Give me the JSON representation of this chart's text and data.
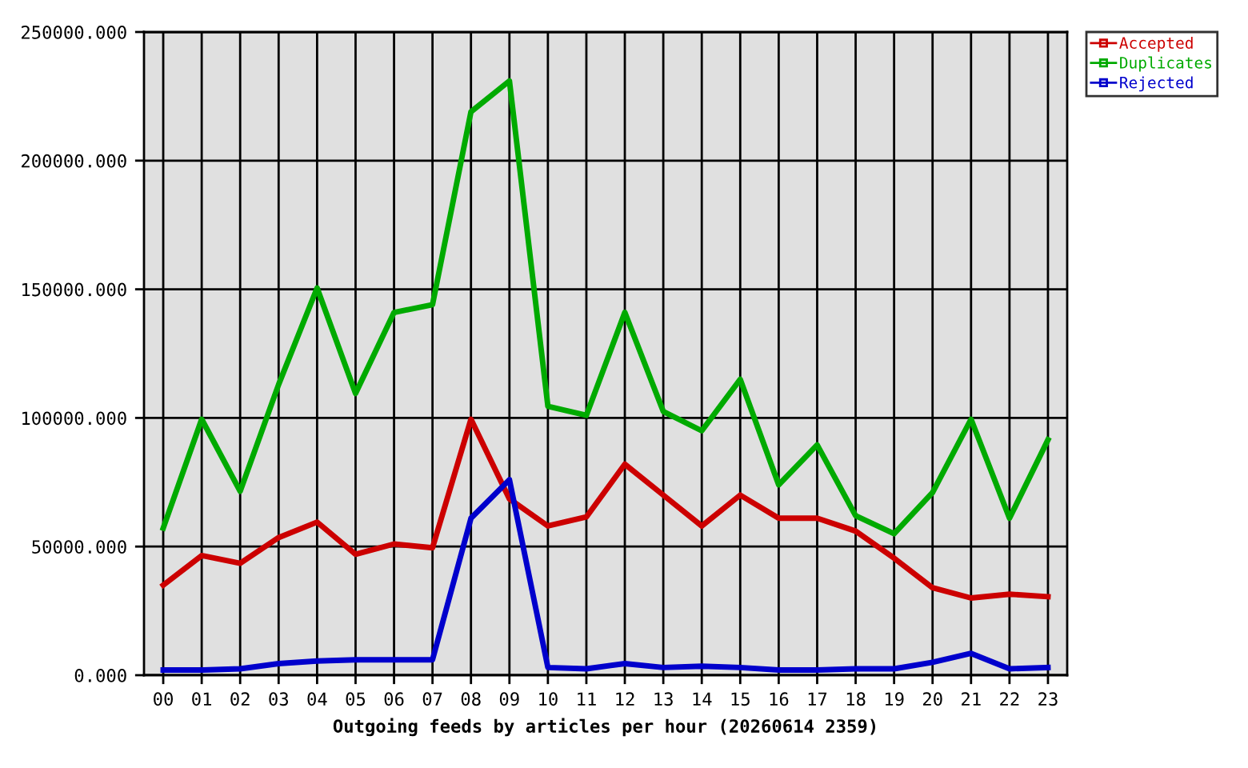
{
  "chart_data": {
    "type": "line",
    "xlabel": "Outgoing feeds by articles per hour (20260614 2359)",
    "categories": [
      "00",
      "01",
      "02",
      "03",
      "04",
      "05",
      "06",
      "07",
      "08",
      "09",
      "10",
      "11",
      "12",
      "13",
      "14",
      "15",
      "16",
      "17",
      "18",
      "19",
      "20",
      "21",
      "22",
      "23"
    ],
    "series": [
      {
        "name": "Accepted",
        "color": "#cc0000",
        "values": [
          35000,
          46500,
          43500,
          53500,
          59500,
          47000,
          51000,
          49500,
          99500,
          68500,
          58000,
          61500,
          82000,
          70000,
          58000,
          70000,
          61000,
          61000,
          56000,
          45500,
          34000,
          30000,
          31500,
          30500
        ]
      },
      {
        "name": "Duplicates",
        "color": "#00aa00",
        "values": [
          57200,
          99500,
          71500,
          113000,
          150500,
          109500,
          141000,
          144000,
          219000,
          231000,
          104500,
          101000,
          141000,
          102500,
          95000,
          115000,
          74000,
          89500,
          62000,
          55000,
          71000,
          99500,
          61000,
          91500
        ]
      },
      {
        "name": "Rejected",
        "color": "#0000cc",
        "values": [
          2000,
          2000,
          2500,
          4500,
          5500,
          6000,
          6000,
          6000,
          61000,
          76000,
          3000,
          2500,
          4500,
          3000,
          3500,
          3000,
          2000,
          2000,
          2500,
          2500,
          5000,
          8500,
          2500,
          3000
        ]
      }
    ],
    "ylim": [
      0,
      250000
    ],
    "yticks": [
      {
        "value": 0,
        "label": "0.000"
      },
      {
        "value": 50000,
        "label": "50000.000"
      },
      {
        "value": 100000,
        "label": "100000.000"
      },
      {
        "value": 150000,
        "label": "150000.000"
      },
      {
        "value": 200000,
        "label": "200000.000"
      },
      {
        "value": 250000,
        "label": "250000.000"
      }
    ],
    "grid": true,
    "legend": "top right",
    "line_style": "solid"
  }
}
